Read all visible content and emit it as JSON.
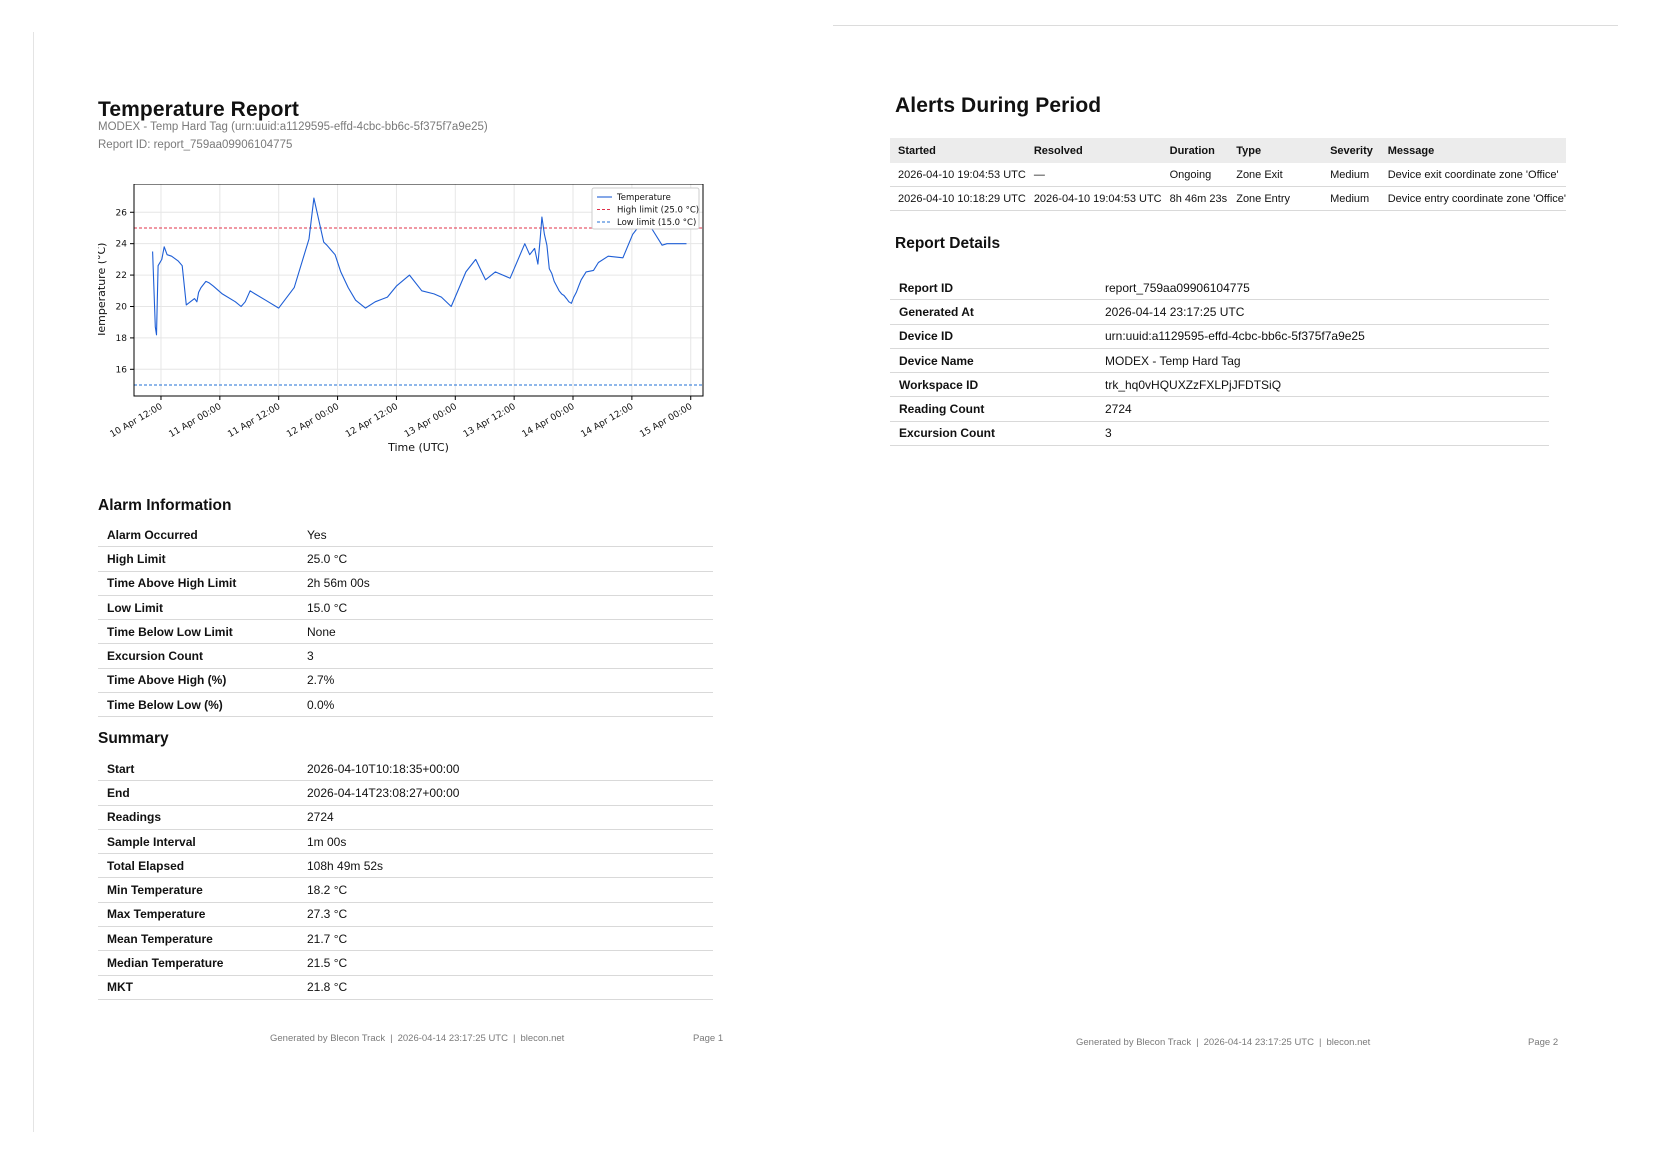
{
  "page1": {
    "title": "Temperature Report",
    "device_line": "MODEX - Temp Hard Tag (urn:uuid:a1129595-effd-4cbc-bb6c-5f375f7a9e25)",
    "report_id_line": "Report ID: report_759aa09906104775",
    "alarm": {
      "heading": "Alarm Information",
      "rows": [
        {
          "k": "Alarm Occurred",
          "v": "Yes"
        },
        {
          "k": "High Limit",
          "v": "25.0 °C"
        },
        {
          "k": "Time Above High Limit",
          "v": "2h 56m 00s"
        },
        {
          "k": "Low Limit",
          "v": "15.0 °C"
        },
        {
          "k": "Time Below Low Limit",
          "v": "None"
        },
        {
          "k": "Excursion Count",
          "v": "3"
        },
        {
          "k": "Time Above High (%)",
          "v": "2.7%"
        },
        {
          "k": "Time Below Low (%)",
          "v": "0.0%"
        }
      ]
    },
    "summary": {
      "heading": "Summary",
      "rows": [
        {
          "k": "Start",
          "v": "2026-04-10T10:18:35+00:00"
        },
        {
          "k": "End",
          "v": "2026-04-14T23:08:27+00:00"
        },
        {
          "k": "Readings",
          "v": "2724"
        },
        {
          "k": "Sample Interval",
          "v": "1m 00s"
        },
        {
          "k": "Total Elapsed",
          "v": "108h 49m 52s"
        },
        {
          "k": "Min Temperature",
          "v": "18.2 °C"
        },
        {
          "k": "Max Temperature",
          "v": "27.3 °C"
        },
        {
          "k": "Mean Temperature",
          "v": "21.7 °C"
        },
        {
          "k": "Median Temperature",
          "v": "21.5 °C"
        },
        {
          "k": "MKT",
          "v": "21.8 °C"
        }
      ]
    },
    "footer": {
      "generated_by": "Generated by Blecon Track",
      "timestamp": "2026-04-14 23:17:25 UTC",
      "site": "blecon.net",
      "page": "Page 1"
    }
  },
  "page2": {
    "title": "Alerts During Period",
    "alerts": {
      "columns": [
        "Started",
        "Resolved",
        "Duration",
        "Type",
        "Severity",
        "Message"
      ],
      "rows": [
        [
          "2026-04-10 19:04:53 UTC",
          "—",
          "Ongoing",
          "Zone Exit",
          "Medium",
          "Device exit coordinate zone 'Office'"
        ],
        [
          "2026-04-10 10:18:29 UTC",
          "2026-04-10 19:04:53 UTC",
          "8h 46m 23s",
          "Zone Entry",
          "Medium",
          "Device entry coordinate zone 'Office'"
        ]
      ]
    },
    "details": {
      "heading": "Report Details",
      "rows": [
        {
          "k": "Report ID",
          "v": "report_759aa09906104775"
        },
        {
          "k": "Generated At",
          "v": "2026-04-14 23:17:25 UTC"
        },
        {
          "k": "Device ID",
          "v": "urn:uuid:a1129595-effd-4cbc-bb6c-5f375f7a9e25"
        },
        {
          "k": "Device Name",
          "v": "MODEX - Temp Hard Tag"
        },
        {
          "k": "Workspace ID",
          "v": "trk_hq0vHQUXZzFXLPjJFDTSiQ"
        },
        {
          "k": "Reading Count",
          "v": "2724"
        },
        {
          "k": "Excursion Count",
          "v": "3"
        }
      ]
    },
    "footer": {
      "generated_by": "Generated by Blecon Track",
      "timestamp": "2026-04-14 23:17:25 UTC",
      "site": "blecon.net",
      "page": "Page 2"
    }
  },
  "chart_data": {
    "type": "line",
    "xlabel": "Time (UTC)",
    "ylabel": "Temperature (°C)",
    "ylim": [
      14.3,
      27.8
    ],
    "xlim": [
      "2026-04-10 06:30",
      "2026-04-15 02:30"
    ],
    "x_ticks": [
      "2026-04-10 12:00",
      "2026-04-11 00:00",
      "2026-04-11 12:00",
      "2026-04-12 00:00",
      "2026-04-12 12:00",
      "2026-04-13 00:00",
      "2026-04-13 12:00",
      "2026-04-14 00:00",
      "2026-04-14 12:00",
      "2026-04-15 00:00"
    ],
    "x_tick_labels": [
      "10 Apr 12:00",
      "11 Apr 00:00",
      "11 Apr 12:00",
      "12 Apr 00:00",
      "12 Apr 12:00",
      "13 Apr 00:00",
      "13 Apr 12:00",
      "14 Apr 00:00",
      "14 Apr 12:00",
      "15 Apr 00:00"
    ],
    "y_ticks": [
      16,
      18,
      20,
      22,
      24,
      26
    ],
    "grid": true,
    "legend_position": "top-right",
    "series": [
      {
        "name": "Temperature",
        "color": "#1f5fd6",
        "x": [
          "2026-04-10 10:18",
          "2026-04-10 10:50",
          "2026-04-10 11:05",
          "2026-04-10 11:25",
          "2026-04-10 12:10",
          "2026-04-10 12:40",
          "2026-04-10 13:15",
          "2026-04-10 14:10",
          "2026-04-10 15:30",
          "2026-04-10 16:20",
          "2026-04-10 17:10",
          "2026-04-10 18:50",
          "2026-04-10 19:20",
          "2026-04-10 19:40",
          "2026-04-10 20:10",
          "2026-04-10 21:10",
          "2026-04-10 21:50",
          "2026-04-10 22:40",
          "2026-04-11 00:30",
          "2026-04-11 03:10",
          "2026-04-11 04:20",
          "2026-04-11 05:10",
          "2026-04-11 06:10",
          "2026-04-11 07:10",
          "2026-04-11 09:20",
          "2026-04-11 12:00",
          "2026-04-11 15:10",
          "2026-04-11 18:10",
          "2026-04-11 19:10",
          "2026-04-11 21:10",
          "2026-04-11 21:50",
          "2026-04-11 22:40",
          "2026-04-11 23:30",
          "2026-04-12 00:40",
          "2026-04-12 02:10",
          "2026-04-12 03:40",
          "2026-04-12 05:40",
          "2026-04-12 07:40",
          "2026-04-12 10:10",
          "2026-04-12 12:00",
          "2026-04-12 14:40",
          "2026-04-12 17:10",
          "2026-04-12 19:40",
          "2026-04-12 21:10",
          "2026-04-12 23:10",
          "2026-04-13 02:10",
          "2026-04-13 04:10",
          "2026-04-13 06:10",
          "2026-04-13 08:10",
          "2026-04-13 11:10",
          "2026-04-13 14:10",
          "2026-04-13 15:10",
          "2026-04-13 16:10",
          "2026-04-13 16:50",
          "2026-04-13 17:20",
          "2026-04-13 17:40",
          "2026-04-13 18:10",
          "2026-04-13 18:40",
          "2026-04-13 19:10",
          "2026-04-13 19:40",
          "2026-04-13 20:10",
          "2026-04-13 20:40",
          "2026-04-13 21:10",
          "2026-04-13 21:40",
          "2026-04-13 22:10",
          "2026-04-13 22:40",
          "2026-04-13 23:10",
          "2026-04-13 23:40",
          "2026-04-14 00:10",
          "2026-04-14 00:40",
          "2026-04-14 01:10",
          "2026-04-14 01:40",
          "2026-04-14 02:40",
          "2026-04-14 04:10",
          "2026-04-14 05:10",
          "2026-04-14 07:10",
          "2026-04-14 10:10",
          "2026-04-14 12:10",
          "2026-04-14 14:10",
          "2026-04-14 16:10",
          "2026-04-14 18:10",
          "2026-04-14 19:10",
          "2026-04-14 20:10",
          "2026-04-14 21:10",
          "2026-04-14 22:10",
          "2026-04-14 22:40",
          "2026-04-14 23:08"
        ],
        "y": [
          23.5,
          18.7,
          18.2,
          22.6,
          23.0,
          23.8,
          23.3,
          23.2,
          22.9,
          22.6,
          20.1,
          20.5,
          20.3,
          20.9,
          21.2,
          21.6,
          21.5,
          21.3,
          20.8,
          20.3,
          20.0,
          20.3,
          21.0,
          20.8,
          20.4,
          19.9,
          21.2,
          24.3,
          26.9,
          24.1,
          23.9,
          23.6,
          23.3,
          22.2,
          21.2,
          20.4,
          19.9,
          20.3,
          20.6,
          21.3,
          22.0,
          21.0,
          20.8,
          20.6,
          20.0,
          22.2,
          23.0,
          21.7,
          22.2,
          21.8,
          24.0,
          23.3,
          23.7,
          22.7,
          24.4,
          25.7,
          24.6,
          23.9,
          22.4,
          22.1,
          21.6,
          21.3,
          21.0,
          20.8,
          20.7,
          20.5,
          20.3,
          20.2,
          20.6,
          20.9,
          21.3,
          21.7,
          22.2,
          22.3,
          22.8,
          23.2,
          23.1,
          24.6,
          25.4,
          24.9,
          23.9,
          24.0,
          24.0,
          24.0,
          24.0,
          24.0,
          24.0
        ]
      },
      {
        "name": "High limit (25.0 °C)",
        "color": "#e0304a",
        "dashed": true,
        "y": 25.0
      },
      {
        "name": "Low limit (15.0 °C)",
        "color": "#1f6fd6",
        "dashed": true,
        "y": 15.0
      }
    ]
  }
}
